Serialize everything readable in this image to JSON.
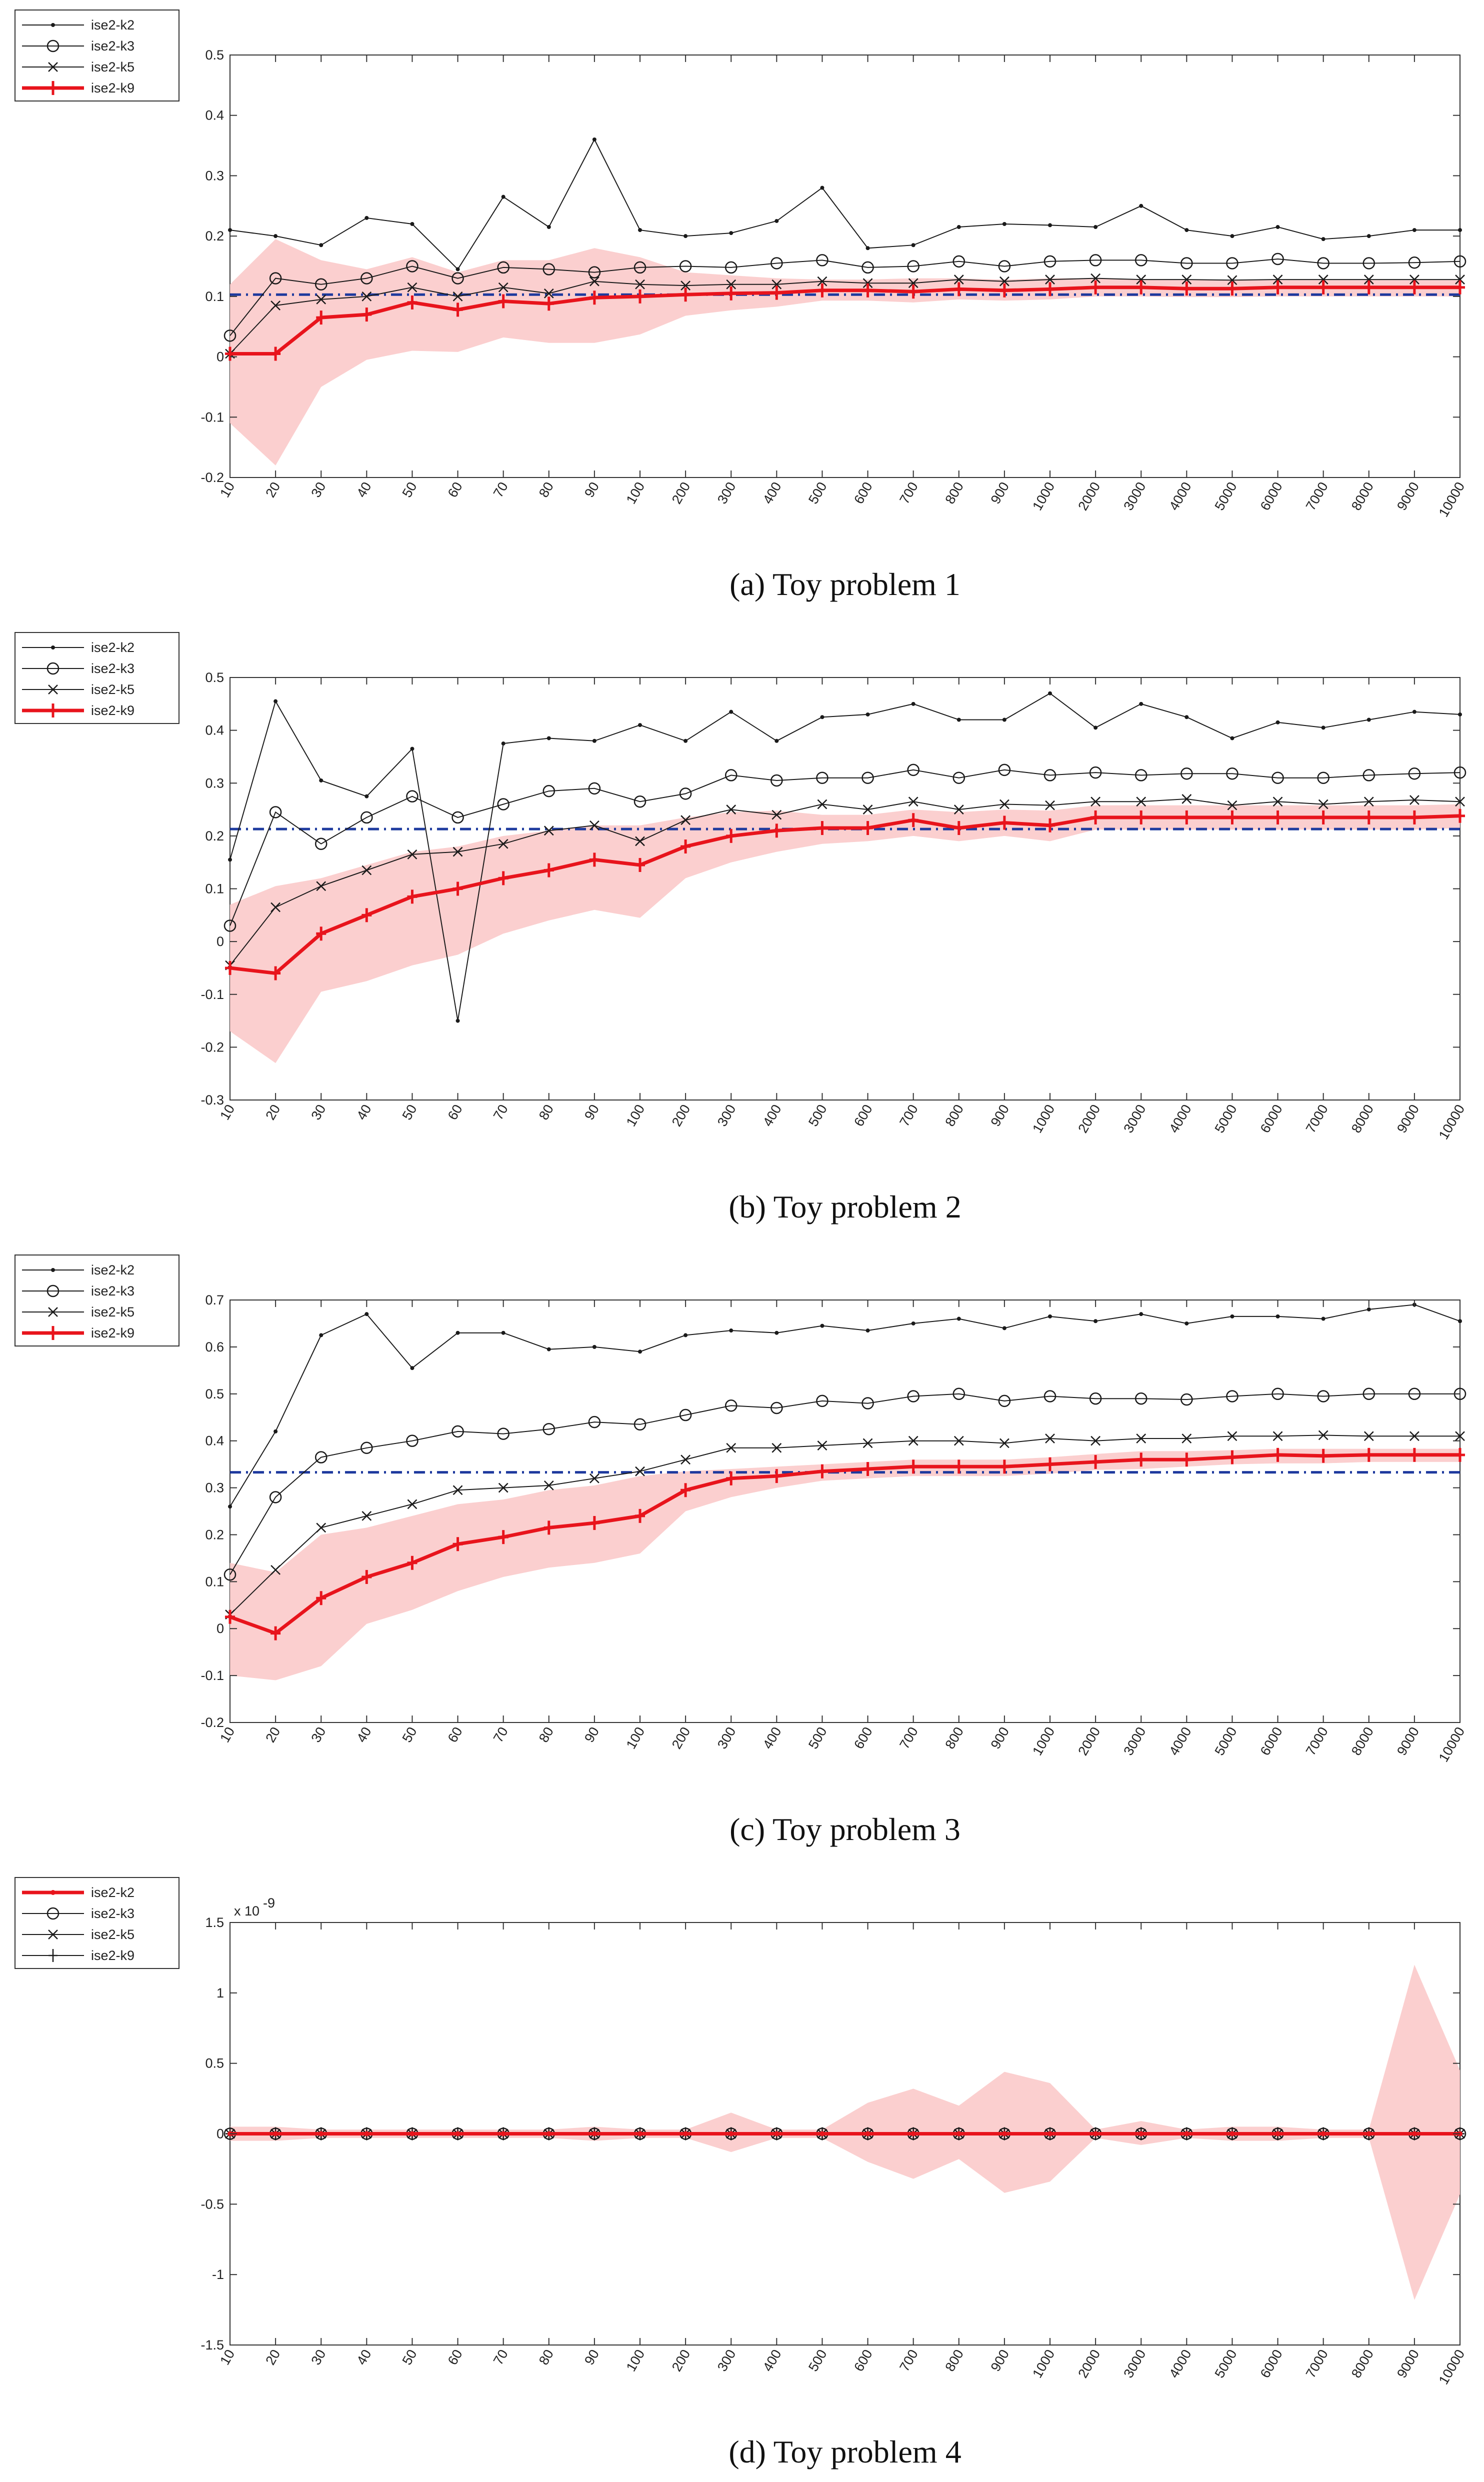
{
  "figure": {
    "panels_count": 4
  },
  "chart_data": [
    {
      "type": "line",
      "caption": "(a)  Toy problem 1",
      "categories": [
        "10",
        "20",
        "30",
        "40",
        "50",
        "60",
        "70",
        "80",
        "90",
        "100",
        "200",
        "300",
        "400",
        "500",
        "600",
        "700",
        "800",
        "900",
        "1000",
        "2000",
        "3000",
        "4000",
        "5000",
        "6000",
        "7000",
        "8000",
        "9000",
        "10000"
      ],
      "ylim": [
        -0.2,
        0.5
      ],
      "yticks": [
        "-0.2",
        "-0.1",
        "0",
        "0.1",
        "0.2",
        "0.3",
        "0.4",
        "0.5"
      ],
      "exponent_label": "",
      "reference_line": 0.103,
      "legend": [
        "ise2-k2",
        "ise2-k3",
        "ise2-k5",
        "ise2-k9"
      ],
      "highlight_index": 3,
      "series": [
        {
          "name": "ise2-k2",
          "values": [
            0.21,
            0.2,
            0.185,
            0.23,
            0.22,
            0.145,
            0.265,
            0.215,
            0.36,
            0.21,
            0.2,
            0.205,
            0.225,
            0.28,
            0.18,
            0.185,
            0.215,
            0.22,
            0.218,
            0.215,
            0.25,
            0.21,
            0.2,
            0.215,
            0.195,
            0.2,
            0.21,
            0.21
          ]
        },
        {
          "name": "ise2-k3",
          "values": [
            0.035,
            0.13,
            0.12,
            0.13,
            0.15,
            0.13,
            0.148,
            0.145,
            0.14,
            0.148,
            0.15,
            0.148,
            0.155,
            0.16,
            0.148,
            0.15,
            0.158,
            0.15,
            0.158,
            0.16,
            0.16,
            0.155,
            0.155,
            0.162,
            0.155,
            0.155,
            0.156,
            0.158
          ]
        },
        {
          "name": "ise2-k5",
          "values": [
            0.005,
            0.085,
            0.095,
            0.1,
            0.115,
            0.1,
            0.115,
            0.105,
            0.125,
            0.12,
            0.118,
            0.12,
            0.12,
            0.125,
            0.122,
            0.122,
            0.128,
            0.125,
            0.128,
            0.13,
            0.128,
            0.128,
            0.127,
            0.128,
            0.128,
            0.128,
            0.128,
            0.128
          ]
        },
        {
          "name": "ise2-k9",
          "values": [
            0.005,
            0.005,
            0.065,
            0.07,
            0.09,
            0.078,
            0.092,
            0.088,
            0.098,
            0.1,
            0.103,
            0.105,
            0.106,
            0.11,
            0.11,
            0.108,
            0.112,
            0.11,
            0.112,
            0.115,
            0.115,
            0.113,
            0.113,
            0.115,
            0.115,
            0.115,
            0.115,
            0.115
          ],
          "band_upper": [
            0.12,
            0.195,
            0.16,
            0.145,
            0.165,
            0.14,
            0.16,
            0.16,
            0.18,
            0.165,
            0.14,
            0.135,
            0.13,
            0.128,
            0.128,
            0.13,
            0.13,
            0.128,
            0.13,
            0.13,
            0.128,
            0.127,
            0.127,
            0.127,
            0.127,
            0.127,
            0.127,
            0.127
          ],
          "band_lower": [
            -0.11,
            -0.18,
            -0.05,
            -0.005,
            0.01,
            0.008,
            0.032,
            0.023,
            0.023,
            0.037,
            0.068,
            0.077,
            0.083,
            0.093,
            0.093,
            0.09,
            0.095,
            0.093,
            0.095,
            0.1,
            0.1,
            0.099,
            0.099,
            0.1,
            0.1,
            0.1,
            0.1,
            0.1
          ]
        }
      ]
    },
    {
      "type": "line",
      "caption": "(b)  Toy problem 2",
      "categories": [
        "10",
        "20",
        "30",
        "40",
        "50",
        "60",
        "70",
        "80",
        "90",
        "100",
        "200",
        "300",
        "400",
        "500",
        "600",
        "700",
        "800",
        "900",
        "1000",
        "2000",
        "3000",
        "4000",
        "5000",
        "6000",
        "7000",
        "8000",
        "9000",
        "10000"
      ],
      "ylim": [
        -0.3,
        0.5
      ],
      "yticks": [
        "-0.3",
        "-0.2",
        "-0.1",
        "0",
        "0.1",
        "0.2",
        "0.3",
        "0.4",
        "0.5"
      ],
      "exponent_label": "",
      "reference_line": 0.213,
      "legend": [
        "ise2-k2",
        "ise2-k3",
        "ise2-k5",
        "ise2-k9"
      ],
      "highlight_index": 3,
      "series": [
        {
          "name": "ise2-k2",
          "values": [
            0.155,
            0.455,
            0.305,
            0.275,
            0.365,
            -0.15,
            0.375,
            0.385,
            0.38,
            0.41,
            0.38,
            0.435,
            0.38,
            0.425,
            0.43,
            0.45,
            0.42,
            0.42,
            0.47,
            0.405,
            0.45,
            0.425,
            0.385,
            0.415,
            0.405,
            0.42,
            0.435,
            0.43
          ]
        },
        {
          "name": "ise2-k3",
          "values": [
            0.03,
            0.245,
            0.185,
            0.235,
            0.275,
            0.235,
            0.26,
            0.285,
            0.29,
            0.265,
            0.28,
            0.315,
            0.305,
            0.31,
            0.31,
            0.325,
            0.31,
            0.325,
            0.315,
            0.32,
            0.315,
            0.318,
            0.318,
            0.31,
            0.31,
            0.315,
            0.318,
            0.32
          ]
        },
        {
          "name": "ise2-k5",
          "values": [
            -0.045,
            0.065,
            0.105,
            0.135,
            0.165,
            0.17,
            0.185,
            0.21,
            0.22,
            0.19,
            0.23,
            0.25,
            0.24,
            0.26,
            0.25,
            0.265,
            0.25,
            0.26,
            0.258,
            0.265,
            0.265,
            0.27,
            0.258,
            0.265,
            0.26,
            0.265,
            0.268,
            0.265
          ]
        },
        {
          "name": "ise2-k9",
          "values": [
            -0.05,
            -0.06,
            0.015,
            0.05,
            0.085,
            0.1,
            0.12,
            0.135,
            0.155,
            0.145,
            0.18,
            0.2,
            0.21,
            0.215,
            0.215,
            0.23,
            0.215,
            0.225,
            0.22,
            0.235,
            0.235,
            0.235,
            0.235,
            0.235,
            0.235,
            0.235,
            0.235,
            0.238
          ],
          "band_upper": [
            0.07,
            0.105,
            0.12,
            0.145,
            0.17,
            0.18,
            0.2,
            0.21,
            0.22,
            0.22,
            0.235,
            0.245,
            0.248,
            0.24,
            0.24,
            0.25,
            0.245,
            0.25,
            0.248,
            0.258,
            0.258,
            0.258,
            0.258,
            0.258,
            0.258,
            0.258,
            0.258,
            0.26
          ],
          "band_lower": [
            -0.17,
            -0.23,
            -0.095,
            -0.075,
            -0.045,
            -0.025,
            0.015,
            0.04,
            0.06,
            0.045,
            0.12,
            0.15,
            0.17,
            0.185,
            0.19,
            0.2,
            0.19,
            0.2,
            0.19,
            0.212,
            0.212,
            0.212,
            0.212,
            0.212,
            0.212,
            0.212,
            0.212,
            0.215
          ]
        }
      ]
    },
    {
      "type": "line",
      "caption": "(c)  Toy problem 3",
      "categories": [
        "10",
        "20",
        "30",
        "40",
        "50",
        "60",
        "70",
        "80",
        "90",
        "100",
        "200",
        "300",
        "400",
        "500",
        "600",
        "700",
        "800",
        "900",
        "1000",
        "2000",
        "3000",
        "4000",
        "5000",
        "6000",
        "7000",
        "8000",
        "9000",
        "10000"
      ],
      "ylim": [
        -0.2,
        0.7
      ],
      "yticks": [
        "-0.2",
        "-0.1",
        "0",
        "0.1",
        "0.2",
        "0.3",
        "0.4",
        "0.5",
        "0.6",
        "0.7"
      ],
      "exponent_label": "",
      "reference_line": 0.333,
      "legend": [
        "ise2-k2",
        "ise2-k3",
        "ise2-k5",
        "ise2-k9"
      ],
      "highlight_index": 3,
      "series": [
        {
          "name": "ise2-k2",
          "values": [
            0.26,
            0.42,
            0.625,
            0.67,
            0.555,
            0.63,
            0.63,
            0.595,
            0.6,
            0.59,
            0.625,
            0.635,
            0.63,
            0.645,
            0.635,
            0.65,
            0.66,
            0.64,
            0.665,
            0.655,
            0.67,
            0.65,
            0.665,
            0.665,
            0.66,
            0.68,
            0.69,
            0.655
          ]
        },
        {
          "name": "ise2-k3",
          "values": [
            0.115,
            0.28,
            0.365,
            0.385,
            0.4,
            0.42,
            0.415,
            0.425,
            0.44,
            0.435,
            0.455,
            0.475,
            0.47,
            0.485,
            0.48,
            0.495,
            0.5,
            0.485,
            0.495,
            0.49,
            0.49,
            0.488,
            0.495,
            0.5,
            0.495,
            0.5,
            0.5,
            0.5
          ]
        },
        {
          "name": "ise2-k5",
          "values": [
            0.03,
            0.125,
            0.215,
            0.24,
            0.265,
            0.295,
            0.3,
            0.305,
            0.32,
            0.335,
            0.36,
            0.385,
            0.385,
            0.39,
            0.395,
            0.4,
            0.4,
            0.395,
            0.405,
            0.4,
            0.405,
            0.405,
            0.41,
            0.41,
            0.412,
            0.41,
            0.41,
            0.41
          ]
        },
        {
          "name": "ise2-k9",
          "values": [
            0.025,
            -0.01,
            0.065,
            0.11,
            0.14,
            0.18,
            0.195,
            0.215,
            0.225,
            0.24,
            0.295,
            0.32,
            0.325,
            0.335,
            0.34,
            0.345,
            0.345,
            0.345,
            0.35,
            0.355,
            0.36,
            0.36,
            0.365,
            0.37,
            0.368,
            0.37,
            0.37,
            0.37
          ],
          "band_upper": [
            0.14,
            0.12,
            0.2,
            0.215,
            0.24,
            0.265,
            0.275,
            0.295,
            0.305,
            0.325,
            0.335,
            0.34,
            0.345,
            0.35,
            0.355,
            0.36,
            0.36,
            0.36,
            0.365,
            0.372,
            0.378,
            0.378,
            0.38,
            0.383,
            0.383,
            0.383,
            0.383,
            0.383
          ],
          "band_lower": [
            -0.1,
            -0.11,
            -0.08,
            0.01,
            0.04,
            0.08,
            0.11,
            0.13,
            0.14,
            0.16,
            0.25,
            0.28,
            0.3,
            0.315,
            0.32,
            0.325,
            0.325,
            0.325,
            0.33,
            0.338,
            0.34,
            0.345,
            0.35,
            0.352,
            0.352,
            0.355,
            0.355,
            0.355
          ]
        }
      ]
    },
    {
      "type": "line",
      "caption": "(d)  Toy problem 4",
      "categories": [
        "10",
        "20",
        "30",
        "40",
        "50",
        "60",
        "70",
        "80",
        "90",
        "100",
        "200",
        "300",
        "400",
        "500",
        "600",
        "700",
        "800",
        "900",
        "1000",
        "2000",
        "3000",
        "4000",
        "5000",
        "6000",
        "7000",
        "8000",
        "9000",
        "10000"
      ],
      "ylim": [
        -1.5,
        1.5
      ],
      "yticks": [
        "-1.5",
        "-1",
        "-0.5",
        "0",
        "0.5",
        "1",
        "1.5"
      ],
      "exponent_label": "x 10",
      "exponent_power": "-9",
      "reference_line": 0.0,
      "legend": [
        "ise2-k2",
        "ise2-k3",
        "ise2-k5",
        "ise2-k9"
      ],
      "highlight_index": 0,
      "series": [
        {
          "name": "ise2-k2",
          "values": [
            0,
            0,
            0,
            0,
            0,
            0,
            0,
            0,
            0,
            0,
            0,
            0,
            0,
            0,
            0,
            0,
            0,
            0,
            0,
            0,
            0,
            0,
            0,
            0,
            0,
            0,
            0,
            0
          ],
          "band_upper": [
            0.05,
            0.05,
            0.03,
            0.03,
            0.03,
            0.03,
            0.03,
            0.03,
            0.05,
            0.03,
            0.03,
            0.15,
            0.03,
            0.03,
            0.22,
            0.32,
            0.2,
            0.44,
            0.36,
            0.03,
            0.09,
            0.03,
            0.05,
            0.05,
            0.03,
            0.03,
            1.2,
            0.45
          ],
          "band_lower": [
            -0.05,
            -0.05,
            -0.03,
            -0.03,
            -0.03,
            -0.03,
            -0.03,
            -0.03,
            -0.05,
            -0.03,
            -0.03,
            -0.13,
            -0.03,
            -0.03,
            -0.2,
            -0.32,
            -0.18,
            -0.42,
            -0.34,
            -0.03,
            -0.08,
            -0.03,
            -0.05,
            -0.05,
            -0.03,
            -0.03,
            -1.18,
            -0.43
          ]
        },
        {
          "name": "ise2-k3",
          "values": [
            0,
            0,
            0,
            0,
            0,
            0,
            0,
            0,
            0,
            0,
            0,
            0,
            0,
            0,
            0,
            0,
            0,
            0,
            0,
            0,
            0,
            0,
            0,
            0,
            0,
            0,
            0,
            0
          ]
        },
        {
          "name": "ise2-k5",
          "values": [
            0,
            0,
            0,
            0,
            0,
            0,
            0,
            0,
            0,
            0,
            0,
            0,
            0,
            0,
            0,
            0,
            0,
            0,
            0,
            0,
            0,
            0,
            0,
            0,
            0,
            0,
            0,
            0
          ]
        },
        {
          "name": "ise2-k9",
          "values": [
            0,
            0,
            0,
            0,
            0,
            0,
            0,
            0,
            0,
            0,
            0,
            0,
            0,
            0,
            0,
            0,
            0,
            0,
            0,
            0,
            0,
            0,
            0,
            0,
            0,
            0,
            0,
            0
          ]
        }
      ]
    }
  ],
  "colors": {
    "highlight": "#e8141c",
    "band": "#fbcfcf",
    "reference": "#1e3a9e",
    "series": "#1a1a1a",
    "axis": "#333333"
  }
}
